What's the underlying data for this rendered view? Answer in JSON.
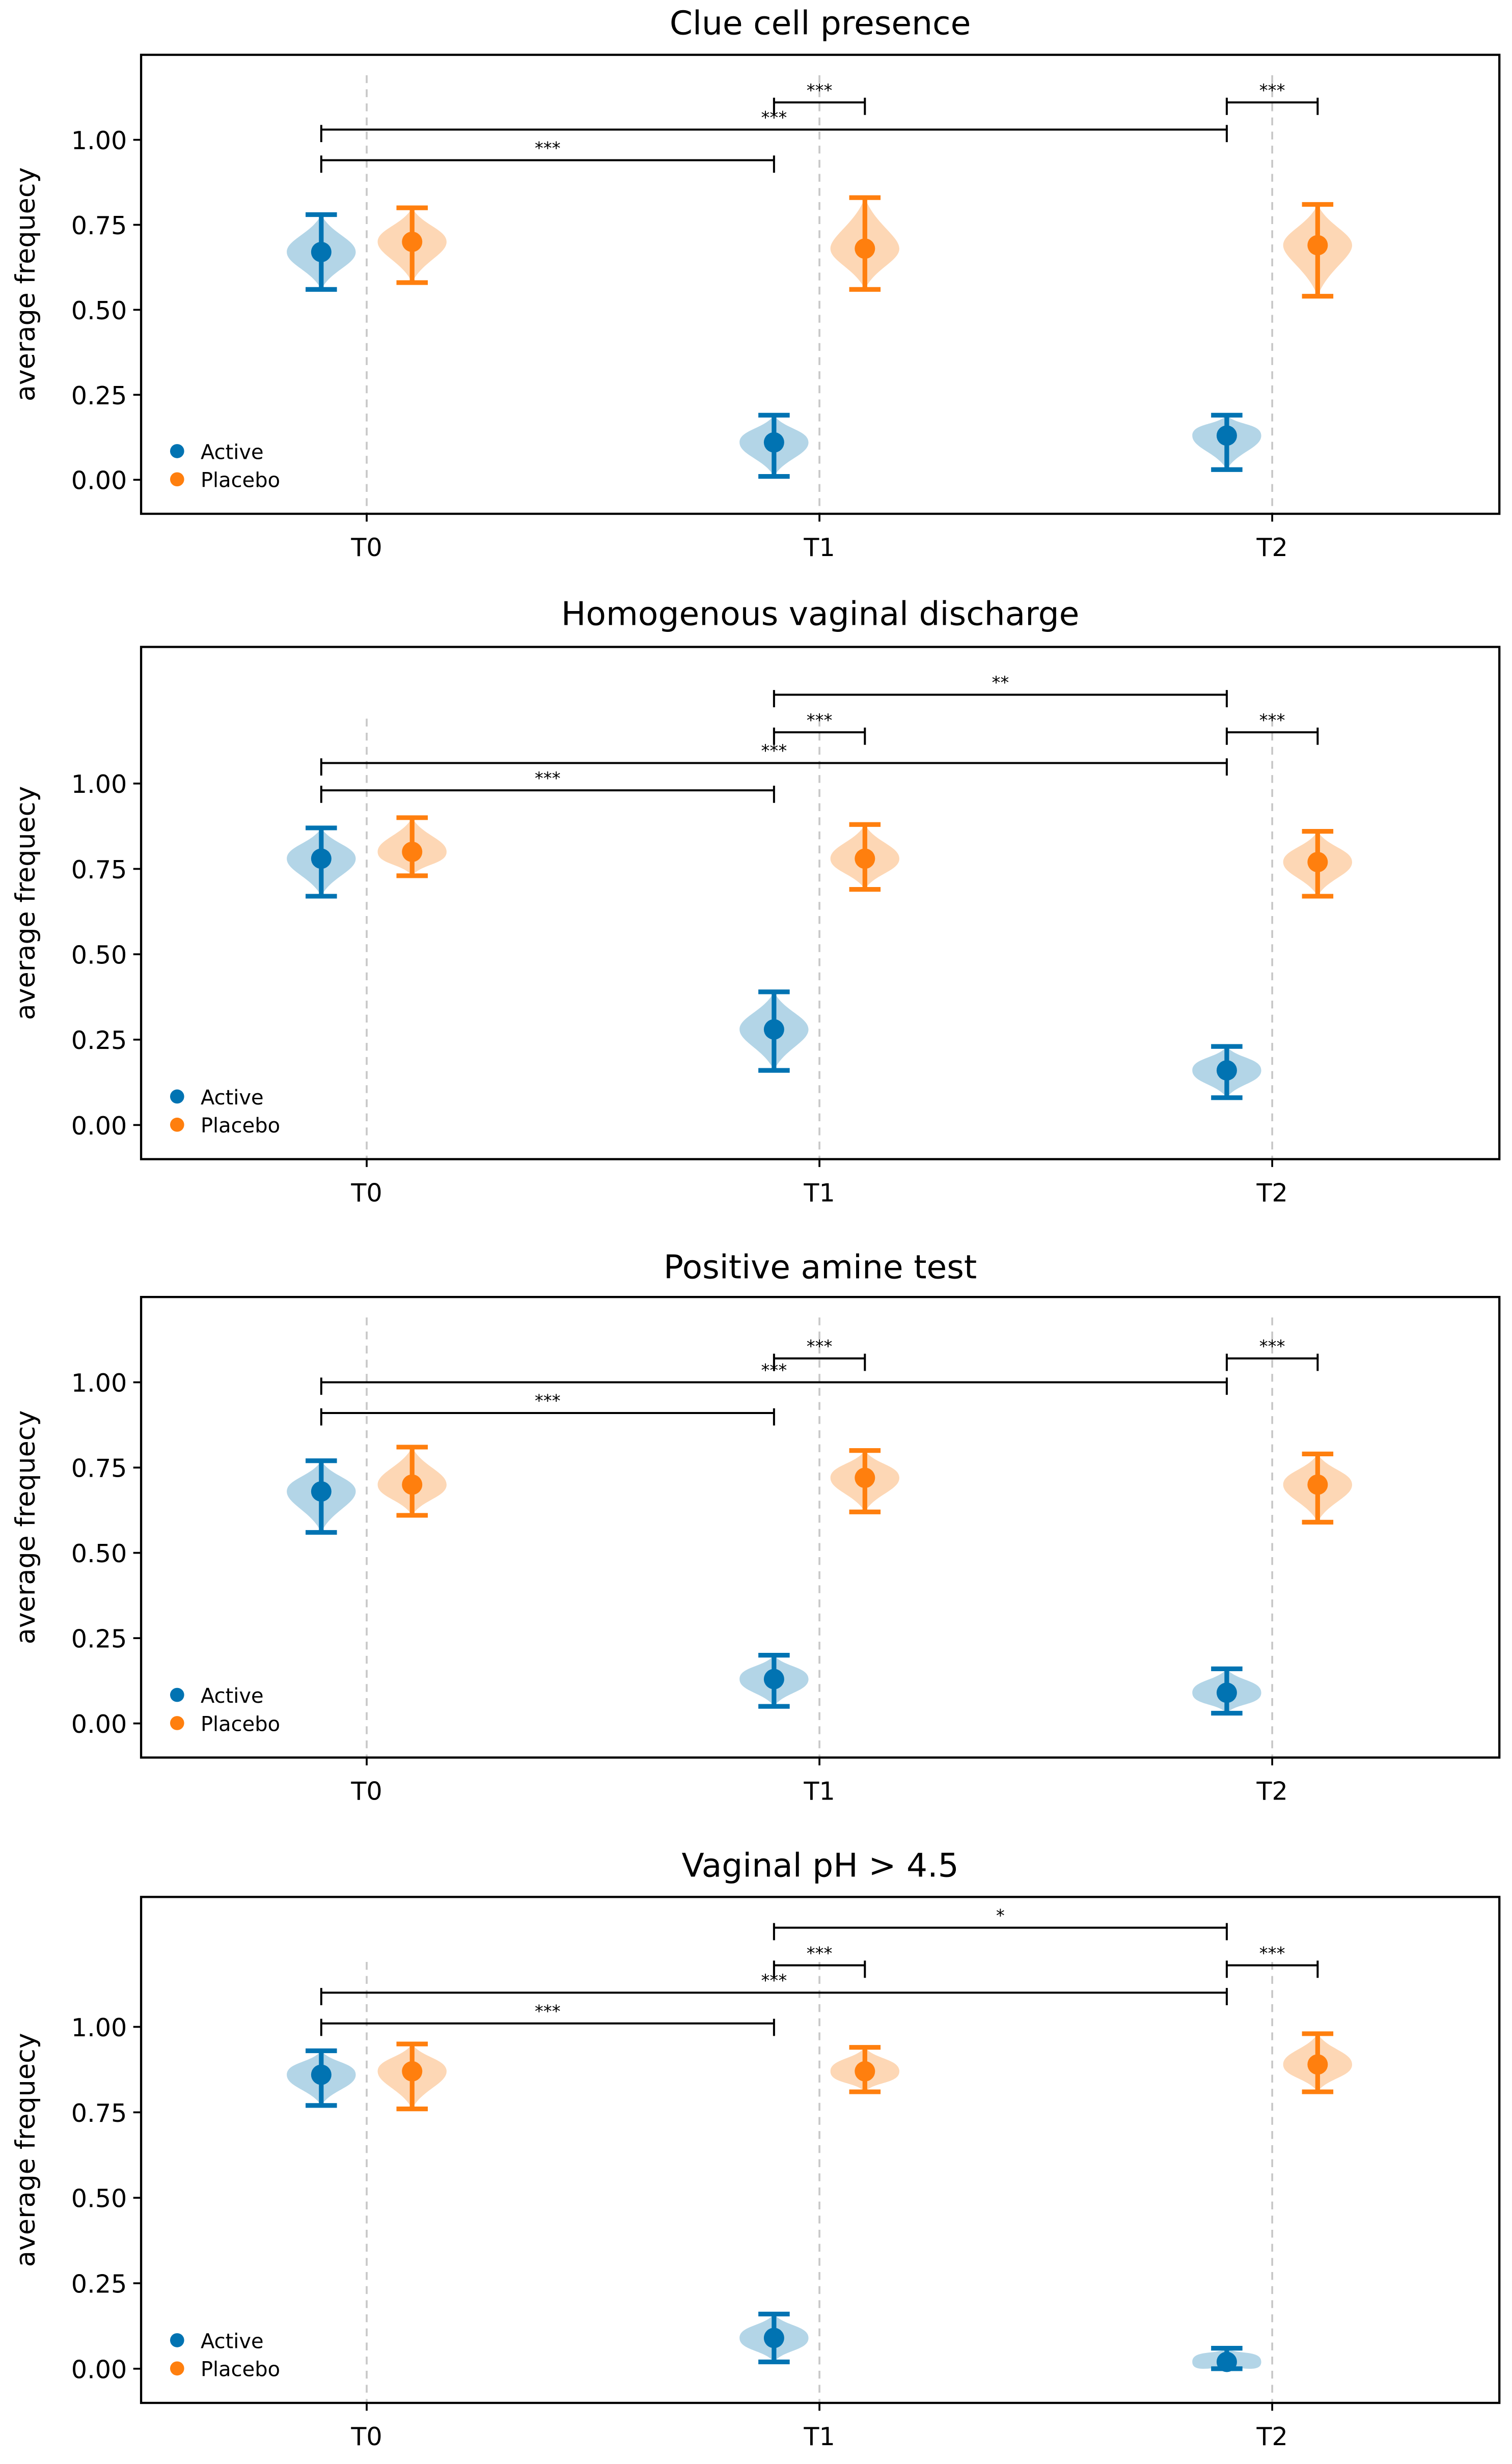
{
  "colors": {
    "active": "#0173b2",
    "active_fill": "#a6cee3",
    "placebo": "#ff7f0e",
    "placebo_fill": "#fdd0a8",
    "grid": "#c8c8c8"
  },
  "chart_data": [
    {
      "type": "violin",
      "title": "Clue cell presence",
      "ylabel": "average frequecy",
      "categories": [
        "T0",
        "T1",
        "T2"
      ],
      "yticks": [
        "0.00",
        "0.25",
        "0.50",
        "0.75",
        "1.00"
      ],
      "ylim": [
        -0.1,
        1.25
      ],
      "legend": {
        "position": "bottom-left",
        "entries": [
          "Active",
          "Placebo"
        ]
      },
      "series": [
        {
          "name": "Active",
          "mean": [
            0.67,
            0.11,
            0.13
          ],
          "low": [
            0.56,
            0.01,
            0.03
          ],
          "high": [
            0.78,
            0.19,
            0.19
          ]
        },
        {
          "name": "Placebo",
          "mean": [
            0.7,
            0.68,
            0.69
          ],
          "low": [
            0.58,
            0.56,
            0.54
          ],
          "high": [
            0.8,
            0.83,
            0.81
          ]
        }
      ],
      "significance": [
        {
          "from": "T1 Active",
          "to": "T1 Placebo",
          "y": 1.11,
          "label": "***"
        },
        {
          "from": "T2 Active",
          "to": "T2 Placebo",
          "y": 1.11,
          "label": "***"
        },
        {
          "from": "T0 Active",
          "to": "T2 Active",
          "y": 1.03,
          "label": "***"
        },
        {
          "from": "T0 Active",
          "to": "T1 Active",
          "y": 0.94,
          "label": "***"
        }
      ]
    },
    {
      "type": "violin",
      "title": "Homogenous vaginal discharge",
      "ylabel": "average frequecy",
      "categories": [
        "T0",
        "T1",
        "T2"
      ],
      "yticks": [
        "0.00",
        "0.25",
        "0.50",
        "0.75",
        "1.00"
      ],
      "ylim": [
        -0.1,
        1.4
      ],
      "legend": {
        "position": "bottom-left",
        "entries": [
          "Active",
          "Placebo"
        ]
      },
      "series": [
        {
          "name": "Active",
          "mean": [
            0.78,
            0.28,
            0.16
          ],
          "low": [
            0.67,
            0.16,
            0.08
          ],
          "high": [
            0.87,
            0.39,
            0.23
          ]
        },
        {
          "name": "Placebo",
          "mean": [
            0.8,
            0.78,
            0.77
          ],
          "low": [
            0.73,
            0.69,
            0.67
          ],
          "high": [
            0.9,
            0.88,
            0.86
          ]
        }
      ],
      "significance": [
        {
          "from": "T1 Active",
          "to": "T2 Active",
          "y": 1.26,
          "label": "**"
        },
        {
          "from": "T1 Active",
          "to": "T1 Placebo",
          "y": 1.15,
          "label": "***"
        },
        {
          "from": "T2 Active",
          "to": "T2 Placebo",
          "y": 1.15,
          "label": "***"
        },
        {
          "from": "T0 Active",
          "to": "T2 Active",
          "y": 1.06,
          "label": "***"
        },
        {
          "from": "T0 Active",
          "to": "T1 Active",
          "y": 0.98,
          "label": "***"
        }
      ]
    },
    {
      "type": "violin",
      "title": "Positive amine test",
      "ylabel": "average frequecy",
      "categories": [
        "T0",
        "T1",
        "T2"
      ],
      "yticks": [
        "0.00",
        "0.25",
        "0.50",
        "0.75",
        "1.00"
      ],
      "ylim": [
        -0.1,
        1.25
      ],
      "legend": {
        "position": "bottom-left",
        "entries": [
          "Active",
          "Placebo"
        ]
      },
      "series": [
        {
          "name": "Active",
          "mean": [
            0.68,
            0.13,
            0.09
          ],
          "low": [
            0.56,
            0.05,
            0.03
          ],
          "high": [
            0.77,
            0.2,
            0.16
          ]
        },
        {
          "name": "Placebo",
          "mean": [
            0.7,
            0.72,
            0.7
          ],
          "low": [
            0.61,
            0.62,
            0.59
          ],
          "high": [
            0.81,
            0.8,
            0.79
          ]
        }
      ],
      "significance": [
        {
          "from": "T1 Active",
          "to": "T1 Placebo",
          "y": 1.07,
          "label": "***"
        },
        {
          "from": "T2 Active",
          "to": "T2 Placebo",
          "y": 1.07,
          "label": "***"
        },
        {
          "from": "T0 Active",
          "to": "T2 Active",
          "y": 1.0,
          "label": "***"
        },
        {
          "from": "T0 Active",
          "to": "T1 Active",
          "y": 0.91,
          "label": "***"
        }
      ]
    },
    {
      "type": "violin",
      "title": "Vaginal pH > 4.5",
      "ylabel": "average frequecy",
      "categories": [
        "T0",
        "T1",
        "T2"
      ],
      "yticks": [
        "0.00",
        "0.25",
        "0.50",
        "0.75",
        "1.00"
      ],
      "ylim": [
        -0.1,
        1.38
      ],
      "legend": {
        "position": "bottom-left",
        "entries": [
          "Active",
          "Placebo"
        ]
      },
      "series": [
        {
          "name": "Active",
          "mean": [
            0.86,
            0.09,
            0.02
          ],
          "low": [
            0.77,
            0.02,
            0.0
          ],
          "high": [
            0.93,
            0.16,
            0.06
          ]
        },
        {
          "name": "Placebo",
          "mean": [
            0.87,
            0.87,
            0.89
          ],
          "low": [
            0.76,
            0.81,
            0.81
          ],
          "high": [
            0.95,
            0.94,
            0.98
          ]
        }
      ],
      "significance": [
        {
          "from": "T1 Active",
          "to": "T2 Active",
          "y": 1.29,
          "label": "*"
        },
        {
          "from": "T1 Active",
          "to": "T1 Placebo",
          "y": 1.18,
          "label": "***"
        },
        {
          "from": "T2 Active",
          "to": "T2 Placebo",
          "y": 1.18,
          "label": "***"
        },
        {
          "from": "T0 Active",
          "to": "T2 Active",
          "y": 1.1,
          "label": "***"
        },
        {
          "from": "T0 Active",
          "to": "T1 Active",
          "y": 1.01,
          "label": "***"
        }
      ]
    }
  ]
}
